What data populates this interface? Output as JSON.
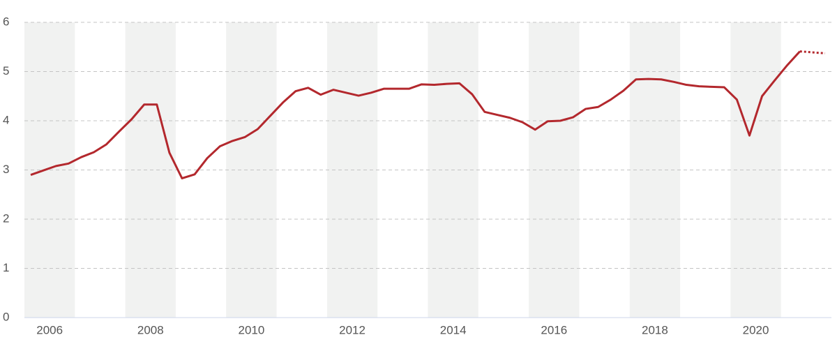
{
  "chart_data": {
    "type": "line",
    "x": [
      2006.125,
      2006.375,
      2006.625,
      2006.875,
      2007.125,
      2007.375,
      2007.625,
      2007.875,
      2008.125,
      2008.375,
      2008.625,
      2008.875,
      2009.125,
      2009.375,
      2009.625,
      2009.875,
      2010.125,
      2010.375,
      2010.625,
      2010.875,
      2011.125,
      2011.375,
      2011.625,
      2011.875,
      2012.125,
      2012.375,
      2012.625,
      2012.875,
      2013.125,
      2013.375,
      2013.625,
      2013.875,
      2014.125,
      2014.375,
      2014.625,
      2014.875,
      2015.125,
      2015.375,
      2015.625,
      2015.875,
      2016.125,
      2016.375,
      2016.625,
      2016.875,
      2017.125,
      2017.375,
      2017.625,
      2017.875,
      2018.125,
      2018.375,
      2018.625,
      2018.875,
      2019.125,
      2019.375,
      2019.625,
      2019.875,
      2020.125,
      2020.375,
      2020.625,
      2020.875,
      2021.125,
      2021.375,
      2021.625,
      2021.875
    ],
    "series": [
      {
        "color": "#b3282d",
        "dashed": false,
        "values": [
          2.9,
          2.99,
          3.08,
          3.13,
          3.26,
          3.36,
          3.52,
          3.78,
          4.03,
          4.33,
          4.33,
          3.35,
          2.83,
          2.91,
          3.24,
          3.48,
          3.59,
          3.67,
          3.83,
          4.1,
          4.37,
          4.6,
          4.67,
          4.53,
          4.63,
          4.57,
          4.51,
          4.57,
          4.65,
          4.65,
          4.65,
          4.74,
          4.73,
          4.75,
          4.76,
          4.54,
          4.18,
          4.12,
          4.06,
          3.97,
          3.82,
          3.99,
          4.0,
          4.07,
          4.24,
          4.28,
          4.43,
          4.61,
          4.84,
          4.85,
          4.84,
          4.79,
          4.73,
          4.7,
          4.69,
          4.68,
          4.43,
          3.7,
          4.5,
          4.82,
          5.13,
          5.41,
          null,
          null
        ]
      },
      {
        "color": "#b3282d",
        "dashed": true,
        "values": [
          null,
          null,
          null,
          null,
          null,
          null,
          null,
          null,
          null,
          null,
          null,
          null,
          null,
          null,
          null,
          null,
          null,
          null,
          null,
          null,
          null,
          null,
          null,
          null,
          null,
          null,
          null,
          null,
          null,
          null,
          null,
          null,
          null,
          null,
          null,
          null,
          null,
          null,
          null,
          null,
          null,
          null,
          null,
          null,
          null,
          null,
          null,
          null,
          null,
          null,
          null,
          null,
          null,
          null,
          null,
          null,
          null,
          null,
          null,
          null,
          null,
          5.41,
          5.39,
          5.37
        ]
      }
    ],
    "xlim": [
      2006,
      2022
    ],
    "xticks": [
      {
        "value": 2006.5,
        "label": "2006"
      },
      {
        "value": 2008.5,
        "label": "2008"
      },
      {
        "value": 2010.5,
        "label": "2010"
      },
      {
        "value": 2012.5,
        "label": "2012"
      },
      {
        "value": 2014.5,
        "label": "2014"
      },
      {
        "value": 2016.5,
        "label": "2016"
      },
      {
        "value": 2018.5,
        "label": "2018"
      },
      {
        "value": 2020.5,
        "label": "2020"
      }
    ],
    "ylim": [
      0,
      6
    ],
    "yticks": [
      0,
      1,
      2,
      3,
      4,
      5,
      6
    ],
    "grid": true,
    "shaded_bands": true
  }
}
